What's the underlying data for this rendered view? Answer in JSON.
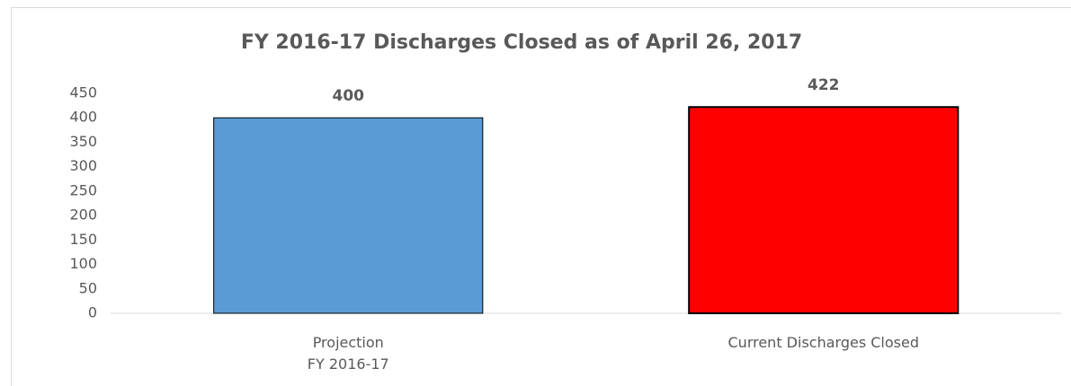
{
  "chart_data": {
    "type": "bar",
    "title": "FY 2016-17 Discharges Closed as of April 26, 2017",
    "categories": [
      "Projection\nFY 2016-17",
      "Current Discharges Closed"
    ],
    "values": [
      400,
      422
    ],
    "colors": [
      "#5b9bd5",
      "#ff0000"
    ],
    "ylim": [
      0,
      450
    ],
    "yticks": [
      0,
      50,
      100,
      150,
      200,
      250,
      300,
      350,
      400,
      450
    ],
    "grid": false
  }
}
